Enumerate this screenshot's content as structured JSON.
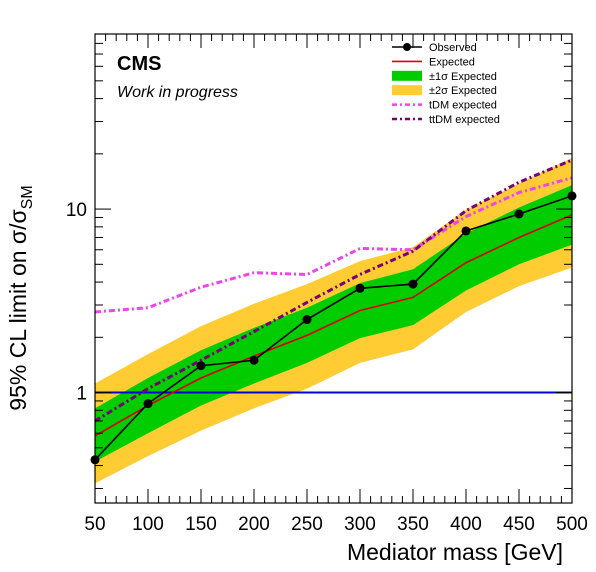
{
  "chart_data": {
    "type": "line",
    "xlabel": "Mediator mass [GeV]",
    "ylabel": "95% CL limit on  σ/σ",
    "ylabel_sub": "SM",
    "yscale": "log",
    "xlim": [
      50,
      500
    ],
    "ylim": [
      0.25,
      90
    ],
    "x_ticks": [
      50,
      100,
      150,
      200,
      250,
      300,
      350,
      400,
      450,
      500
    ],
    "y_ticks": [
      {
        "value": 1,
        "label": "1"
      },
      {
        "value": 10,
        "label": "10"
      }
    ],
    "experiment_label": "CMS",
    "status_label": "Work in progress",
    "reference_line": 1,
    "x": [
      50,
      100,
      150,
      200,
      250,
      300,
      350,
      400,
      450,
      500
    ],
    "series": [
      {
        "name": "Observed",
        "key": "observed",
        "color": "#000000",
        "values": [
          0.43,
          0.87,
          1.4,
          1.5,
          2.5,
          3.7,
          3.9,
          7.6,
          9.4,
          11.8
        ]
      },
      {
        "name": "Expected",
        "key": "expected",
        "color": "#dd0000",
        "values": [
          0.58,
          0.85,
          1.2,
          1.58,
          2.05,
          2.8,
          3.3,
          5.1,
          7.0,
          9.3
        ]
      },
      {
        "name": "tDM expected",
        "key": "tdm",
        "color": "#ee44ee",
        "values": [
          2.75,
          2.9,
          3.75,
          4.5,
          4.4,
          6.1,
          6.0,
          9.1,
          12.3,
          14.8
        ]
      },
      {
        "name": "ttDM expected",
        "key": "ttdm",
        "color": "#770077",
        "values": [
          0.7,
          1.05,
          1.5,
          2.15,
          3.1,
          4.4,
          5.9,
          9.8,
          14.0,
          18.5
        ]
      }
    ],
    "bands": [
      {
        "name": "±2σ Expected",
        "key": "two_sigma",
        "color": "#ffcc33",
        "lower": [
          0.32,
          0.45,
          0.62,
          0.82,
          1.05,
          1.45,
          1.72,
          2.75,
          3.8,
          4.8
        ],
        "upper": [
          1.12,
          1.62,
          2.3,
          3.05,
          3.9,
          5.2,
          6.2,
          9.9,
          13.8,
          19.0
        ]
      },
      {
        "name": "±1σ Expected",
        "key": "one_sigma",
        "color": "#00cc00",
        "lower": [
          0.42,
          0.6,
          0.85,
          1.12,
          1.45,
          1.98,
          2.33,
          3.6,
          5.0,
          6.4
        ],
        "upper": [
          0.82,
          1.2,
          1.7,
          2.25,
          2.9,
          3.95,
          4.7,
          7.35,
          10.2,
          13.5
        ]
      }
    ],
    "legend": {
      "position": "top-right",
      "entries": [
        {
          "label": "Observed",
          "kind": "marker-line",
          "color": "#000000"
        },
        {
          "label": "Expected",
          "kind": "line",
          "color": "#dd0000"
        },
        {
          "label": "±1σ Expected",
          "kind": "box",
          "color": "#00cc00"
        },
        {
          "label": "±2σ Expected",
          "kind": "box",
          "color": "#ffcc33"
        },
        {
          "label": "tDM expected",
          "kind": "dash",
          "color": "#ee44ee"
        },
        {
          "label": "ttDM expected",
          "kind": "dash",
          "color": "#770077"
        }
      ]
    },
    "reference_color": "#0000dd"
  }
}
